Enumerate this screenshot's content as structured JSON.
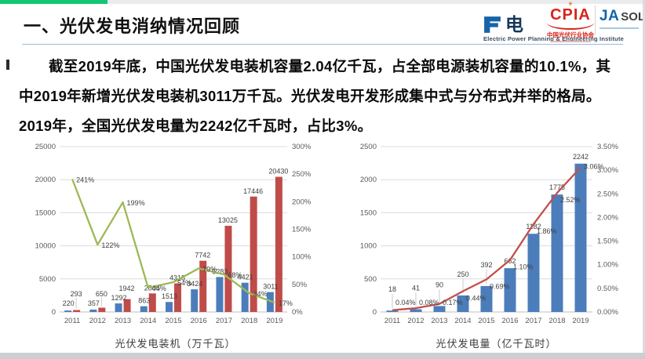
{
  "slide": {
    "title": "一、光伏发电消纳情况回顾",
    "body_lines": [
      "截至2019年底，中国光伏发电装机容量2.04亿千瓦，占全部电源装机容量的10.1%，其",
      "中2019年新增光伏发电装机3011万千瓦。光伏发电开发形成集中式与分布式并举的格局。",
      "2019年，全国光伏发电量为2242亿千瓦时，占比3%。"
    ]
  },
  "logos": {
    "eppei": {
      "cn": "电",
      "en": "Electric Power Planning & Engineering Institute"
    },
    "cpia": {
      "abbr": "CPIA",
      "cn": "中国光伏行业协会"
    },
    "jasolar": {
      "brand": "JA",
      "suffix": "SOL"
    }
  },
  "colors": {
    "accent_green": "#12C773",
    "bar_blue": "#4C7DBB",
    "bar_red": "#BF4C49",
    "line_green": "#9CB954",
    "line_red": "#C0504D",
    "cpia_red": "#D6251D",
    "ja_blue": "#1066AE"
  },
  "chart_data": [
    {
      "type": "bar",
      "title": "光伏发电装机（万千瓦）",
      "xlabel": "",
      "ylabel": "",
      "grid": true,
      "legend": "none",
      "categories": [
        "2011",
        "2012",
        "2013",
        "2014",
        "2015",
        "2016",
        "2017",
        "2018",
        "2019"
      ],
      "axes": {
        "left": {
          "max": 25000,
          "ticks": [
            "0",
            "5000",
            "10000",
            "15000",
            "20000",
            "25000"
          ]
        },
        "right": {
          "max": 300,
          "ticks": [
            "0%",
            "50%",
            "100%",
            "150%",
            "200%",
            "250%",
            "300%"
          ]
        }
      },
      "series": [
        {
          "id": "annual-new-capacity-bar",
          "type": "bar",
          "axis": "left",
          "color": "#4C7DBB",
          "values": [
            220,
            357,
            1292,
            863,
            1513,
            3424,
            5283,
            4421,
            3011
          ],
          "labels": [
            "220",
            "357",
            "1292",
            "863",
            "1513",
            "3424",
            "5283",
            "4421",
            "3011"
          ]
        },
        {
          "id": "cumulative-capacity-bar",
          "type": "bar",
          "axis": "left",
          "color": "#BF4C49",
          "values": [
            293,
            650,
            1942,
            2805,
            4318,
            7742,
            13025,
            17446,
            20430
          ],
          "labels": [
            "293",
            "650",
            "1942",
            "2805",
            "4318",
            "7742",
            "13025",
            "17446",
            "20430"
          ]
        },
        {
          "id": "growth-rate-line",
          "type": "line",
          "axis": "right",
          "color": "#9CB954",
          "values": [
            241,
            122,
            199,
            44,
            54,
            79,
            68,
            34,
            17
          ],
          "labels": [
            "241%",
            "122%",
            "199%",
            "44%",
            "54%",
            "79%",
            "68%",
            "34%",
            "17%"
          ]
        }
      ]
    },
    {
      "type": "bar",
      "title": "光伏发电量（亿千瓦时）",
      "xlabel": "",
      "ylabel": "",
      "grid": true,
      "legend": "none",
      "categories": [
        "2011",
        "2012",
        "2013",
        "2014",
        "2015",
        "2016",
        "2017",
        "2018",
        "2019"
      ],
      "axes": {
        "left": {
          "max": 2500,
          "ticks": [
            "0",
            "500",
            "1000",
            "1500",
            "2000",
            "2500"
          ]
        },
        "right": {
          "max": 3.5,
          "ticks": [
            "0.00%",
            "0.50%",
            "1.00%",
            "1.50%",
            "2.00%",
            "2.50%",
            "3.00%",
            "3.50%"
          ]
        }
      },
      "series": [
        {
          "id": "generation-bar",
          "type": "bar",
          "axis": "left",
          "color": "#4C7DBB",
          "values": [
            18,
            41,
            90,
            250,
            392,
            662,
            1182,
            1775,
            2242
          ],
          "labels": [
            "18",
            "41",
            "90",
            "250",
            "392",
            "662",
            "1182",
            "1775",
            "2242"
          ]
        },
        {
          "id": "generation-share-line",
          "type": "line",
          "axis": "right",
          "color": "#C0504D",
          "values": [
            0.04,
            0.08,
            0.17,
            0.44,
            0.69,
            1.1,
            1.86,
            2.52,
            3.06
          ],
          "labels": [
            "0.04%",
            "0.08%",
            "0.17%",
            "0.44%",
            "0.69%",
            "1.10%",
            "1.86%",
            "2.52%",
            "3.06%"
          ]
        }
      ]
    }
  ]
}
